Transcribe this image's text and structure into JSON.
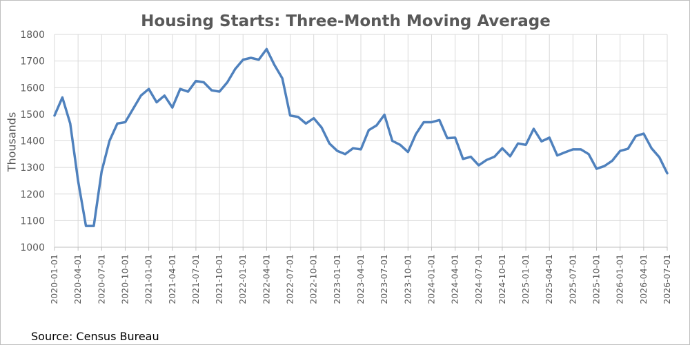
{
  "chart_data": {
    "type": "line",
    "title": "Housing Starts: Three-Month Moving Average",
    "ylabel": "Thousands",
    "xlabel": "",
    "source": "Source: Census Bureau",
    "ylim": [
      1000,
      1800
    ],
    "yticks": [
      1000,
      1100,
      1200,
      1300,
      1400,
      1500,
      1600,
      1700,
      1800
    ],
    "grid": true,
    "legend": "none",
    "line_color": "#4f81bd",
    "grid_color": "#d9d9d9",
    "x_tick_labels": [
      "2020-01-01",
      "2020-04-01",
      "2020-07-01",
      "2020-10-01",
      "2021-01-01",
      "2021-04-01",
      "2021-07-01",
      "2021-10-01",
      "2022-01-01",
      "2022-04-01",
      "2022-07-01",
      "2022-10-01",
      "2023-01-01",
      "2023-04-01",
      "2023-07-01",
      "2023-10-01",
      "2024-01-01",
      "2024-04-01",
      "2024-07-01",
      "2024-10-01",
      "2025-01-01",
      "2025-04-01",
      "2025-07-01",
      "2025-10-01",
      "2026-01-01",
      "2026-04-01",
      "2026-07-01"
    ],
    "series": [
      {
        "x": [
          "2020-01-01",
          "2020-02-01",
          "2020-03-01",
          "2020-04-01",
          "2020-05-01",
          "2020-06-01",
          "2020-07-01",
          "2020-08-01",
          "2020-09-01",
          "2020-10-01",
          "2020-11-01",
          "2020-12-01",
          "2021-01-01",
          "2021-02-01",
          "2021-03-01",
          "2021-04-01",
          "2021-05-01",
          "2021-06-01",
          "2021-07-01",
          "2021-08-01",
          "2021-09-01",
          "2021-10-01",
          "2021-11-01",
          "2021-12-01",
          "2022-01-01",
          "2022-02-01",
          "2022-03-01",
          "2022-04-01",
          "2022-05-01",
          "2022-06-01",
          "2022-07-01",
          "2022-08-01",
          "2022-09-01",
          "2022-10-01",
          "2022-11-01",
          "2022-12-01",
          "2023-01-01",
          "2023-02-01",
          "2023-03-01",
          "2023-04-01",
          "2023-05-01",
          "2023-06-01",
          "2023-07-01",
          "2023-08-01",
          "2023-09-01",
          "2023-10-01",
          "2023-11-01",
          "2023-12-01",
          "2024-01-01",
          "2024-02-01",
          "2024-03-01",
          "2024-04-01",
          "2024-05-01",
          "2024-06-01",
          "2024-07-01",
          "2024-08-01",
          "2024-09-01",
          "2024-10-01",
          "2024-11-01",
          "2024-12-01",
          "2025-01-01",
          "2025-02-01",
          "2025-03-01",
          "2025-04-01",
          "2025-05-01",
          "2025-06-01",
          "2025-07-01",
          "2025-08-01",
          "2025-09-01",
          "2025-10-01",
          "2025-11-01",
          "2025-12-01",
          "2026-01-01",
          "2026-02-01",
          "2026-03-01",
          "2026-04-01",
          "2026-05-01",
          "2026-06-01",
          "2026-07-01"
        ],
        "values": [
          1495,
          1563,
          1465,
          1250,
          1080,
          1080,
          1285,
          1400,
          1465,
          1470,
          1520,
          1570,
          1595,
          1545,
          1570,
          1525,
          1595,
          1585,
          1625,
          1620,
          1590,
          1585,
          1620,
          1670,
          1705,
          1712,
          1705,
          1745,
          1685,
          1635,
          1495,
          1490,
          1465,
          1485,
          1450,
          1390,
          1362,
          1350,
          1372,
          1368,
          1440,
          1458,
          1498,
          1400,
          1385,
          1358,
          1425,
          1470,
          1470,
          1478,
          1410,
          1412,
          1332,
          1340,
          1308,
          1328,
          1340,
          1372,
          1342,
          1390,
          1385,
          1445,
          1398,
          1412,
          1345,
          1357,
          1368,
          1368,
          1350,
          1295,
          1305,
          1325,
          1362,
          1370,
          1418,
          1427,
          1372,
          1338,
          1278
        ]
      }
    ]
  }
}
